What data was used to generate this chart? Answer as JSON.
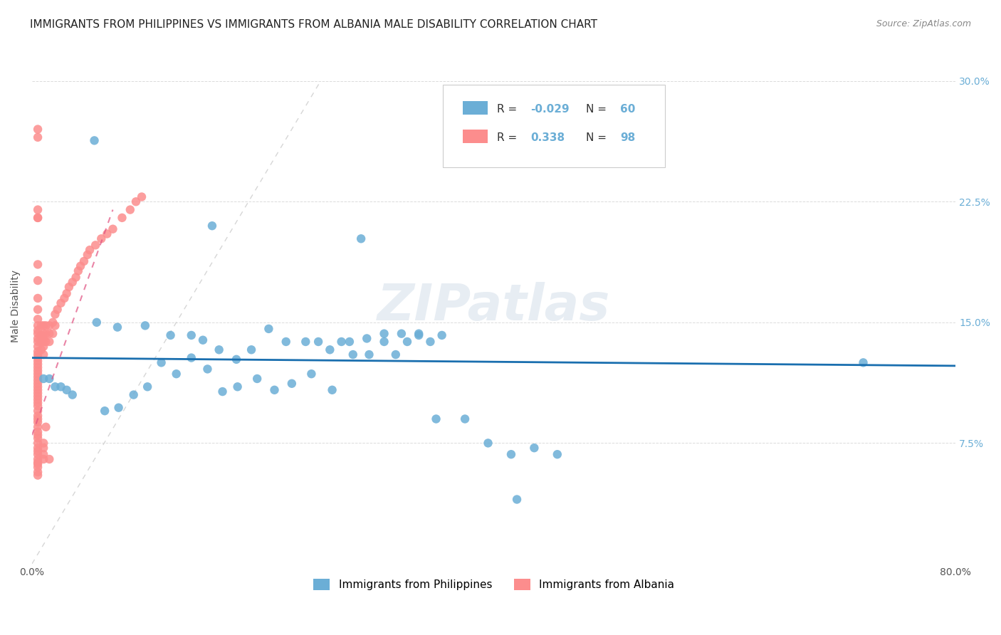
{
  "title": "IMMIGRANTS FROM PHILIPPINES VS IMMIGRANTS FROM ALBANIA MALE DISABILITY CORRELATION CHART",
  "source": "Source: ZipAtlas.com",
  "xlabel": "",
  "ylabel": "Male Disability",
  "xlim": [
    0.0,
    0.8
  ],
  "ylim": [
    0.0,
    0.32
  ],
  "xticks": [
    0.0,
    0.1,
    0.2,
    0.3,
    0.4,
    0.5,
    0.6,
    0.7,
    0.8
  ],
  "xticklabels": [
    "0.0%",
    "",
    "",
    "",
    "",
    "",
    "",
    "",
    "80.0%"
  ],
  "yticks": [
    0.0,
    0.075,
    0.15,
    0.225,
    0.3
  ],
  "yticklabels": [
    "",
    "7.5%",
    "15.0%",
    "22.5%",
    "30.0%"
  ],
  "legend_r1": "R = -0.029",
  "legend_n1": "N = 60",
  "legend_r2": "R =  0.338",
  "legend_n2": "N = 98",
  "philippines_color": "#6baed6",
  "albania_color": "#fc8d8d",
  "philippines_scatter": {
    "x": [
      0.054,
      0.156,
      0.285,
      0.056,
      0.074,
      0.098,
      0.12,
      0.138,
      0.148,
      0.162,
      0.177,
      0.19,
      0.205,
      0.22,
      0.237,
      0.248,
      0.258,
      0.268,
      0.278,
      0.292,
      0.305,
      0.315,
      0.325,
      0.335,
      0.345,
      0.355,
      0.063,
      0.075,
      0.088,
      0.1,
      0.112,
      0.125,
      0.138,
      0.152,
      0.165,
      0.178,
      0.195,
      0.21,
      0.225,
      0.242,
      0.26,
      0.275,
      0.29,
      0.305,
      0.32,
      0.335,
      0.35,
      0.375,
      0.395,
      0.415,
      0.435,
      0.455,
      0.01,
      0.015,
      0.02,
      0.025,
      0.03,
      0.035,
      0.72,
      0.42
    ],
    "y": [
      0.263,
      0.21,
      0.202,
      0.15,
      0.147,
      0.148,
      0.142,
      0.142,
      0.139,
      0.133,
      0.127,
      0.133,
      0.146,
      0.138,
      0.138,
      0.138,
      0.133,
      0.138,
      0.13,
      0.13,
      0.138,
      0.13,
      0.138,
      0.142,
      0.138,
      0.142,
      0.095,
      0.097,
      0.105,
      0.11,
      0.125,
      0.118,
      0.128,
      0.121,
      0.107,
      0.11,
      0.115,
      0.108,
      0.112,
      0.118,
      0.108,
      0.138,
      0.14,
      0.143,
      0.143,
      0.143,
      0.09,
      0.09,
      0.075,
      0.068,
      0.072,
      0.068,
      0.115,
      0.115,
      0.11,
      0.11,
      0.108,
      0.105,
      0.125,
      0.04
    ]
  },
  "albania_scatter": {
    "x": [
      0.005,
      0.005,
      0.005,
      0.005,
      0.005,
      0.005,
      0.005,
      0.005,
      0.005,
      0.005,
      0.005,
      0.005,
      0.005,
      0.005,
      0.005,
      0.005,
      0.005,
      0.005,
      0.005,
      0.005,
      0.005,
      0.005,
      0.005,
      0.005,
      0.005,
      0.005,
      0.005,
      0.005,
      0.005,
      0.005,
      0.005,
      0.005,
      0.005,
      0.005,
      0.005,
      0.005,
      0.005,
      0.005,
      0.005,
      0.005,
      0.005,
      0.005,
      0.005,
      0.005,
      0.005,
      0.005,
      0.005,
      0.005,
      0.005,
      0.005,
      0.008,
      0.008,
      0.008,
      0.008,
      0.01,
      0.01,
      0.01,
      0.01,
      0.01,
      0.01,
      0.012,
      0.012,
      0.012,
      0.015,
      0.015,
      0.015,
      0.018,
      0.018,
      0.02,
      0.02,
      0.022,
      0.025,
      0.028,
      0.03,
      0.032,
      0.035,
      0.038,
      0.04,
      0.042,
      0.045,
      0.048,
      0.05,
      0.055,
      0.06,
      0.065,
      0.07,
      0.078,
      0.085,
      0.09,
      0.095,
      0.01,
      0.01,
      0.01,
      0.01,
      0.012,
      0.015,
      0.005,
      0.005
    ],
    "y": [
      0.27,
      0.265,
      0.22,
      0.215,
      0.186,
      0.176,
      0.165,
      0.158,
      0.152,
      0.148,
      0.145,
      0.143,
      0.14,
      0.138,
      0.135,
      0.132,
      0.13,
      0.128,
      0.126,
      0.124,
      0.122,
      0.12,
      0.118,
      0.116,
      0.114,
      0.112,
      0.11,
      0.108,
      0.106,
      0.104,
      0.102,
      0.1,
      0.098,
      0.095,
      0.092,
      0.09,
      0.088,
      0.085,
      0.082,
      0.08,
      0.078,
      0.075,
      0.072,
      0.07,
      0.068,
      0.065,
      0.062,
      0.06,
      0.057,
      0.055,
      0.148,
      0.142,
      0.138,
      0.133,
      0.148,
      0.143,
      0.14,
      0.138,
      0.135,
      0.13,
      0.148,
      0.143,
      0.138,
      0.148,
      0.143,
      0.138,
      0.15,
      0.143,
      0.155,
      0.148,
      0.158,
      0.162,
      0.165,
      0.168,
      0.172,
      0.175,
      0.178,
      0.182,
      0.185,
      0.188,
      0.192,
      0.195,
      0.198,
      0.202,
      0.205,
      0.208,
      0.215,
      0.22,
      0.225,
      0.228,
      0.075,
      0.072,
      0.068,
      0.065,
      0.085,
      0.065,
      0.215,
      0.063
    ]
  },
  "philippines_trend": {
    "x": [
      0.0,
      0.8
    ],
    "y": [
      0.128,
      0.123
    ]
  },
  "albania_trend": {
    "x": [
      0.0,
      0.12
    ],
    "y": [
      0.09,
      0.17
    ]
  },
  "watermark": "ZIPatlas",
  "background_color": "#ffffff",
  "grid_color": "#cccccc",
  "title_fontsize": 11,
  "axis_label_fontsize": 10
}
